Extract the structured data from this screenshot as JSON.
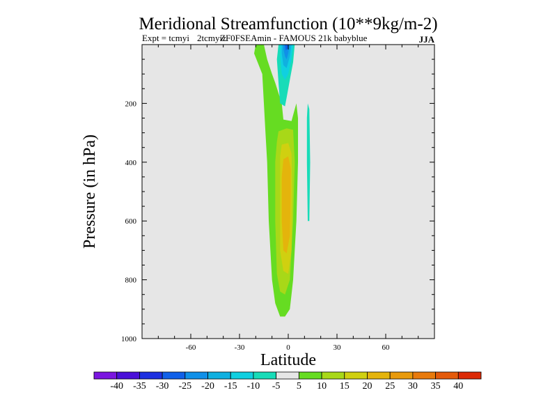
{
  "chart_data": {
    "type": "contour",
    "title": "Meridional Streamfunction (10**9kg/m-2)",
    "subtitle_overlap_a": "Expt = tcmyi",
    "subtitle_overlap_b": "2tcmyiz",
    "subtitle_main": "ZF0FSEAmin - FAMOUS 21k babyblue",
    "season": "JJA",
    "xlabel": "Latitude",
    "ylabel": "Pressure (in hPa)",
    "xlim": [
      -90,
      90
    ],
    "ylim": [
      1000,
      0
    ],
    "x_ticks": [
      "-60",
      "-30",
      "0",
      "30",
      "60"
    ],
    "x_tick_values": [
      -60,
      -30,
      0,
      30,
      60
    ],
    "y_ticks": [
      "200",
      "400",
      "600",
      "800",
      "1000"
    ],
    "y_tick_values": [
      200,
      400,
      600,
      800,
      1000
    ],
    "background_color": "#e6e6e6",
    "levels": [
      {
        "min": -45,
        "max": -40,
        "color": "#7b16e0"
      },
      {
        "min": -40,
        "max": -35,
        "color": "#4a10d8"
      },
      {
        "min": -35,
        "max": -30,
        "color": "#1e30e0"
      },
      {
        "min": -30,
        "max": -25,
        "color": "#1060e8"
      },
      {
        "min": -25,
        "max": -20,
        "color": "#1090e8"
      },
      {
        "min": -20,
        "max": -15,
        "color": "#10b0e0"
      },
      {
        "min": -15,
        "max": -10,
        "color": "#10d0e0"
      },
      {
        "min": -10,
        "max": -5,
        "color": "#18dcb8"
      },
      {
        "min": -5,
        "max": 5,
        "color": "#e6e6e6"
      },
      {
        "min": 5,
        "max": 10,
        "color": "#66dc22"
      },
      {
        "min": 10,
        "max": 15,
        "color": "#a8d818"
      },
      {
        "min": 15,
        "max": 20,
        "color": "#d0d010"
      },
      {
        "min": 20,
        "max": 25,
        "color": "#e4b40c"
      },
      {
        "min": 25,
        "max": 30,
        "color": "#e89a0c"
      },
      {
        "min": 30,
        "max": 35,
        "color": "#e87a0c"
      },
      {
        "min": 35,
        "max": 40,
        "color": "#e45a0a"
      },
      {
        "min": 40,
        "max": 45,
        "color": "#dc2a06"
      }
    ],
    "colorbar_labels": [
      "-40",
      "-35",
      "-30",
      "-25",
      "-20",
      "-15",
      "-10",
      "-5",
      "5",
      "10",
      "15",
      "20",
      "25",
      "30",
      "35",
      "40"
    ],
    "regions": [
      {
        "name": "positive-cell-5",
        "color": "#66dc22",
        "points": [
          [
            -18,
            0
          ],
          [
            -15,
            0
          ],
          [
            -13,
            50
          ],
          [
            -10,
            100
          ],
          [
            -8,
            130
          ],
          [
            -4,
            200
          ],
          [
            -3,
            255
          ],
          [
            2,
            260
          ],
          [
            4,
            220
          ],
          [
            5,
            200
          ],
          [
            6,
            250
          ],
          [
            6,
            400
          ],
          [
            5,
            600
          ],
          [
            4,
            700
          ],
          [
            3,
            800
          ],
          [
            2,
            850
          ],
          [
            1,
            900
          ],
          [
            -2,
            925
          ],
          [
            -5,
            925
          ],
          [
            -8,
            880
          ],
          [
            -10,
            800
          ],
          [
            -12,
            600
          ],
          [
            -13,
            400
          ],
          [
            -14,
            300
          ],
          [
            -15,
            200
          ],
          [
            -16,
            100
          ],
          [
            -21,
            30
          ],
          [
            -20,
            0
          ]
        ]
      },
      {
        "name": "positive-cell-10",
        "color": "#a8d818",
        "points": [
          [
            -6,
            295
          ],
          [
            -1,
            285
          ],
          [
            3,
            290
          ],
          [
            4,
            400
          ],
          [
            3,
            600
          ],
          [
            2,
            700
          ],
          [
            1,
            800
          ],
          [
            -2,
            850
          ],
          [
            -5,
            840
          ],
          [
            -7,
            780
          ],
          [
            -8,
            600
          ],
          [
            -8,
            400
          ],
          [
            -7,
            330
          ]
        ]
      },
      {
        "name": "positive-cell-15",
        "color": "#d0d010",
        "points": [
          [
            -4,
            340
          ],
          [
            0,
            335
          ],
          [
            2,
            370
          ],
          [
            2.5,
            500
          ],
          [
            2,
            700
          ],
          [
            0,
            780
          ],
          [
            -3,
            770
          ],
          [
            -5,
            700
          ],
          [
            -5,
            500
          ],
          [
            -5,
            380
          ]
        ]
      },
      {
        "name": "positive-cell-20",
        "color": "#e4b40c",
        "points": [
          [
            -3,
            390
          ],
          [
            0,
            380
          ],
          [
            1.5,
            420
          ],
          [
            1.5,
            500
          ],
          [
            1,
            650
          ],
          [
            -1,
            710
          ],
          [
            -3,
            700
          ],
          [
            -4,
            600
          ],
          [
            -4,
            450
          ]
        ]
      },
      {
        "name": "negative-cell-5",
        "color": "#18dcb8",
        "points": [
          [
            -6,
            0
          ],
          [
            4,
            0
          ],
          [
            3,
            60
          ],
          [
            1,
            120
          ],
          [
            -1,
            180
          ],
          [
            -2,
            210
          ],
          [
            -5,
            200
          ],
          [
            -6,
            130
          ],
          [
            -7,
            50
          ]
        ]
      },
      {
        "name": "negative-cell-10",
        "color": "#10d0e0",
        "points": [
          [
            -5,
            0
          ],
          [
            3,
            0
          ],
          [
            2,
            50
          ],
          [
            0,
            100
          ],
          [
            -2,
            120
          ],
          [
            -4,
            100
          ],
          [
            -5,
            40
          ]
        ]
      },
      {
        "name": "negative-cell-15",
        "color": "#10b0e0",
        "points": [
          [
            -4,
            0
          ],
          [
            2,
            0
          ],
          [
            1,
            40
          ],
          [
            -1,
            80
          ],
          [
            -3,
            70
          ],
          [
            -4,
            30
          ]
        ]
      },
      {
        "name": "negative-cell-20",
        "color": "#1090e8",
        "points": [
          [
            -3,
            0
          ],
          [
            1,
            0
          ],
          [
            0,
            30
          ],
          [
            -1,
            50
          ],
          [
            -2,
            40
          ],
          [
            -3,
            15
          ]
        ]
      },
      {
        "name": "negative-cell-25",
        "color": "#1060e8",
        "points": [
          [
            -2,
            0
          ],
          [
            0,
            0
          ],
          [
            -0.5,
            15
          ],
          [
            -1.5,
            20
          ]
        ]
      },
      {
        "name": "narrow-negative-band",
        "color": "#18dcb8",
        "points": [
          [
            12,
            200
          ],
          [
            13,
            220
          ],
          [
            13.5,
            400
          ],
          [
            13,
            600
          ],
          [
            12,
            600
          ],
          [
            11.5,
            400
          ],
          [
            11.5,
            250
          ]
        ]
      }
    ]
  }
}
